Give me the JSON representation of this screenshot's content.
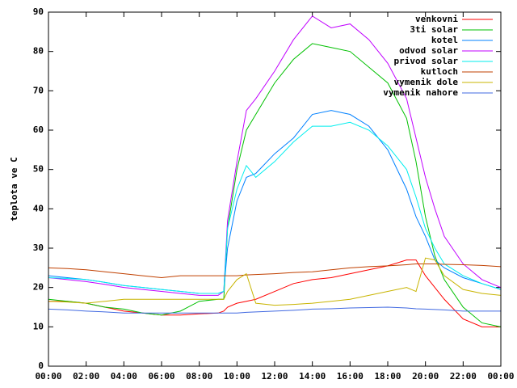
{
  "chart_data": {
    "type": "line",
    "y_label": "teplota ve C",
    "x": [
      0,
      1,
      2,
      3,
      4,
      5,
      6,
      7,
      8,
      9,
      9.3,
      9.5,
      10,
      10.5,
      11,
      12,
      13,
      14,
      15,
      16,
      17,
      18,
      19,
      19.5,
      20,
      20.5,
      21,
      22,
      23,
      24
    ],
    "xlim": [
      0,
      24
    ],
    "xticks": [
      {
        "value": 0,
        "label": "00:00"
      },
      {
        "value": 2,
        "label": "02:00"
      },
      {
        "value": 4,
        "label": "04:00"
      },
      {
        "value": 6,
        "label": "06:00"
      },
      {
        "value": 8,
        "label": "08:00"
      },
      {
        "value": 10,
        "label": "10:00"
      },
      {
        "value": 12,
        "label": "12:00"
      },
      {
        "value": 14,
        "label": "14:00"
      },
      {
        "value": 16,
        "label": "16:00"
      },
      {
        "value": 18,
        "label": "18:00"
      },
      {
        "value": 20,
        "label": "20:00"
      },
      {
        "value": 22,
        "label": "22:00"
      },
      {
        "value": 24,
        "label": "00:00"
      }
    ],
    "ylim": [
      0,
      90
    ],
    "yticks": [
      0,
      10,
      20,
      30,
      40,
      50,
      60,
      70,
      80,
      90
    ],
    "legend": "top-right",
    "series": [
      {
        "name": "venkovni",
        "color": "#ff0000",
        "values": [
          16.5,
          16.5,
          16,
          15,
          14,
          13.5,
          13,
          13,
          13.3,
          13.5,
          14,
          15,
          16,
          16.5,
          17,
          19,
          21,
          22,
          22.5,
          23.5,
          24.5,
          25.5,
          27,
          27,
          23,
          20,
          17,
          12,
          10,
          10
        ]
      },
      {
        "name": "3ti solar",
        "color": "#00c000",
        "values": [
          17,
          16.5,
          16,
          15,
          14.5,
          13.5,
          13,
          14,
          16.5,
          17,
          17,
          35,
          50,
          60,
          64,
          72,
          78,
          82,
          81,
          80,
          76,
          72,
          63,
          52,
          38,
          28,
          22,
          15,
          11,
          10
        ]
      },
      {
        "name": "kotel",
        "color": "#0080ff",
        "values": [
          23,
          22.5,
          22,
          21.3,
          20.5,
          20,
          19.5,
          19,
          18.5,
          18.5,
          19,
          30,
          42,
          48,
          49,
          54,
          58,
          64,
          65,
          64,
          61,
          55,
          45,
          38,
          33,
          27,
          25,
          22.5,
          21,
          19.5
        ]
      },
      {
        "name": "odvod solar",
        "color": "#c000ff",
        "values": [
          22.5,
          22,
          21.5,
          20.8,
          20,
          19.5,
          19,
          18.5,
          18,
          18,
          19,
          37,
          52,
          65,
          68,
          75,
          83,
          89,
          86,
          87,
          83,
          77,
          68,
          58,
          48,
          40,
          33,
          26,
          22,
          20
        ]
      },
      {
        "name": "privod solar",
        "color": "#00eeee",
        "values": [
          22.5,
          22.3,
          22,
          21.3,
          20.5,
          20,
          19.5,
          19,
          18.5,
          18.5,
          19,
          35,
          45,
          51,
          48,
          52,
          57,
          61,
          61,
          62,
          60,
          56,
          50,
          43,
          35,
          30,
          26,
          23,
          21,
          19.5
        ]
      },
      {
        "name": "kutloch",
        "color": "#c04000",
        "values": [
          25,
          24.8,
          24.5,
          24,
          23.5,
          23,
          22.5,
          23,
          23,
          23,
          23,
          23,
          23,
          23.2,
          23.3,
          23.5,
          23.8,
          24,
          24.5,
          25,
          25.3,
          25.5,
          25.8,
          26,
          26,
          26,
          25.9,
          25.8,
          25.6,
          25.3
        ]
      },
      {
        "name": "vymenik dole",
        "color": "#c8b400",
        "values": [
          16.5,
          16.3,
          16,
          16.5,
          17,
          17,
          17,
          17,
          17,
          17,
          17,
          19,
          22,
          23.5,
          16,
          15.5,
          15.7,
          16,
          16.5,
          17,
          18,
          19,
          20,
          19,
          27.5,
          27,
          23,
          19.5,
          18.5,
          18
        ]
      },
      {
        "name": "vymenik nahore",
        "color": "#4169e1",
        "values": [
          14.5,
          14.3,
          14,
          13.8,
          13.5,
          13.5,
          13.5,
          13.5,
          13.5,
          13.5,
          13.5,
          13.5,
          13.5,
          13.7,
          13.8,
          14,
          14.2,
          14.5,
          14.6,
          14.8,
          14.9,
          15,
          14.8,
          14.6,
          14.5,
          14.4,
          14.3,
          14,
          14,
          14
        ]
      }
    ]
  }
}
